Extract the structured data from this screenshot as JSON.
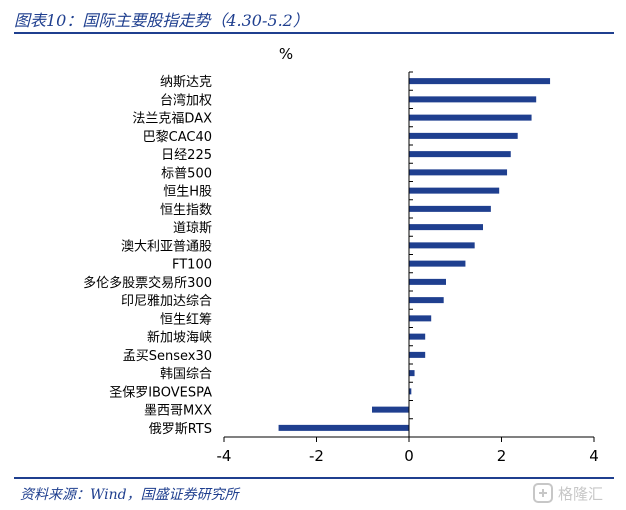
{
  "figure": {
    "title": "图表10：国际主要股指走势（4.30-5.2）",
    "source": "资料来源：Wind，国盛证券研究所",
    "watermark": "格隆汇"
  },
  "colors": {
    "bar": "#1f3f8f",
    "frame": "#1f3f8f",
    "axis": "#000000"
  },
  "chart_data": {
    "type": "bar",
    "orientation": "horizontal",
    "unit_label": "%",
    "categories": [
      "纳斯达克",
      "台湾加权",
      "法兰克福DAX",
      "巴黎CAC40",
      "日经225",
      "标普500",
      "恒生H股",
      "恒生指数",
      "道琼斯",
      "澳大利亚普通股",
      "FT100",
      "多伦多股票交易所300",
      "印尼雅加达综合",
      "恒生红筹",
      "新加坡海峡",
      "孟买Sensex30",
      "韩国综合",
      "圣保罗IBOVESPA",
      "墨西哥MXX",
      "俄罗斯RTS"
    ],
    "values": [
      3.05,
      2.75,
      2.65,
      2.35,
      2.2,
      2.12,
      1.95,
      1.77,
      1.6,
      1.42,
      1.22,
      0.8,
      0.75,
      0.48,
      0.35,
      0.35,
      0.12,
      0.05,
      -0.8,
      -2.82
    ],
    "xlim": [
      -4,
      4
    ],
    "xticks": [
      -4,
      -2,
      0,
      2,
      4
    ],
    "grid": false,
    "legend": "none"
  }
}
